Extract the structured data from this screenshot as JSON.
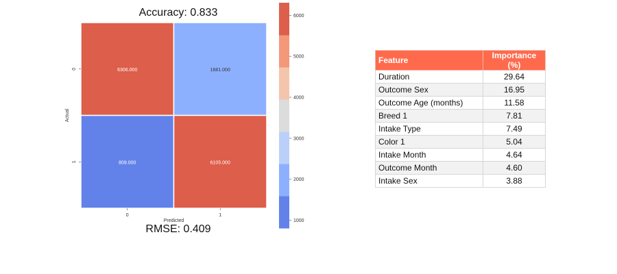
{
  "chart_data": [
    {
      "type": "heatmap",
      "title": "Accuracy:  0.833",
      "subtitle": "RMSE:  0.409",
      "xlabel": "Predicted",
      "ylabel": "Actual",
      "x_categories": [
        "0",
        "1"
      ],
      "y_categories": [
        "0",
        "1"
      ],
      "cells": [
        {
          "row": 0,
          "col": 0,
          "value": 6306,
          "label": "6306.000",
          "color": "#dd5e4b",
          "text_color": "#ffffff"
        },
        {
          "row": 0,
          "col": 1,
          "value": 1681,
          "label": "1681.000",
          "color": "#8db0fe",
          "text_color": "#333333"
        },
        {
          "row": 1,
          "col": 0,
          "value": 809,
          "label": "809.000",
          "color": "#6282ea",
          "text_color": "#ffffff"
        },
        {
          "row": 1,
          "col": 1,
          "value": 6105,
          "label": "6105.000",
          "color": "#dd5e4b",
          "text_color": "#ffffff"
        }
      ],
      "colorbar": {
        "range": [
          809,
          6306
        ],
        "ticks": [
          1000,
          2000,
          3000,
          4000,
          5000,
          6000
        ],
        "tick_labels": [
          "1000",
          "2000",
          "3000",
          "4000",
          "5000",
          "6000"
        ],
        "colors": [
          "#6282ea",
          "#8db0fe",
          "#bbd0f8",
          "#dddcdc",
          "#f4c5ad",
          "#f4987a",
          "#dd5e4b"
        ]
      }
    },
    {
      "type": "table",
      "columns": [
        "Feature",
        "Importance (%)"
      ],
      "rows": [
        [
          "Duration",
          "29.64"
        ],
        [
          "Outcome Sex",
          "16.95"
        ],
        [
          "Outcome Age (months)",
          "11.58"
        ],
        [
          "Breed 1",
          "7.81"
        ],
        [
          "Intake Type",
          "7.49"
        ],
        [
          "Color 1",
          "5.04"
        ],
        [
          "Intake Month",
          "4.64"
        ],
        [
          "Outcome Month",
          "4.60"
        ],
        [
          "Intake Sex",
          "3.88"
        ]
      ],
      "header_color": "#ff6a4d"
    }
  ]
}
